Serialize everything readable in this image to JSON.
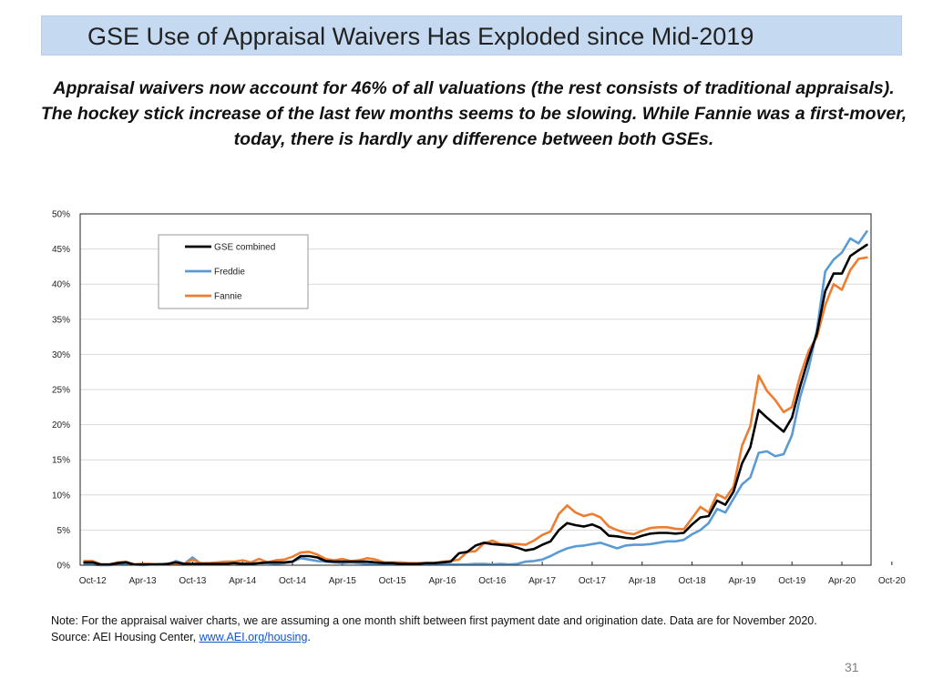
{
  "title": "GSE Use of Appraisal Waivers Has Exploded since Mid-2019",
  "subtitle": "Appraisal waivers now account for 46% of all valuations (the rest consists of traditional appraisals). The hockey stick increase of the last few months seems to be slowing. While Fannie was a first-mover, today, there is hardly any difference between both GSEs.",
  "note": {
    "line1": "Note: For the appraisal waiver charts, we are assuming a one month shift between first payment date and origination date. Data are for November 2020.",
    "source_prefix": "Source: AEI Housing Center, ",
    "source_link": "www.AEI.org/housing",
    "source_suffix": "."
  },
  "page_number": "31",
  "chart_data": {
    "type": "line",
    "x_start": "Sep-12",
    "x_end": "Nov-20",
    "x_ticks": [
      "Oct-12",
      "Apr-13",
      "Oct-13",
      "Apr-14",
      "Oct-14",
      "Apr-15",
      "Oct-15",
      "Apr-16",
      "Oct-16",
      "Apr-17",
      "Oct-17",
      "Apr-18",
      "Oct-18",
      "Apr-19",
      "Oct-19",
      "Apr-20",
      "Oct-20"
    ],
    "y_ticks": [
      "0%",
      "5%",
      "10%",
      "15%",
      "20%",
      "25%",
      "30%",
      "35%",
      "40%",
      "45%",
      "50%"
    ],
    "ylim": [
      0,
      50
    ],
    "grid": true,
    "legend_position": "top-left",
    "series": [
      {
        "name": "GSE combined",
        "color": "#000000",
        "values": [
          0.4,
          0.4,
          0.1,
          0.1,
          0.3,
          0.4,
          0.1,
          0.1,
          0.1,
          0.1,
          0.2,
          0.4,
          0.2,
          0.2,
          0.2,
          0.2,
          0.2,
          0.2,
          0.3,
          0.2,
          0.2,
          0.3,
          0.4,
          0.4,
          0.4,
          0.5,
          1.3,
          1.3,
          1.1,
          0.6,
          0.5,
          0.5,
          0.5,
          0.5,
          0.5,
          0.4,
          0.3,
          0.3,
          0.2,
          0.2,
          0.2,
          0.3,
          0.3,
          0.4,
          0.5,
          1.7,
          1.9,
          2.8,
          3.2,
          3.0,
          2.9,
          2.8,
          2.5,
          2.1,
          2.3,
          2.9,
          3.4,
          5.0,
          6.0,
          5.7,
          5.5,
          5.8,
          5.3,
          4.2,
          4.1,
          3.9,
          3.8,
          4.2,
          4.5,
          4.6,
          4.6,
          4.5,
          4.6,
          5.8,
          6.8,
          7.0,
          9.2,
          8.6,
          10.5,
          14.5,
          16.8,
          22.1,
          21.0,
          20.0,
          19.0,
          21.0,
          25.5,
          29.5,
          33.0,
          39.0,
          41.5,
          41.5,
          44.0,
          44.8,
          45.6
        ]
      },
      {
        "name": "Freddie",
        "color": "#5b9bd5",
        "values": [
          0.1,
          0.1,
          0.0,
          0.0,
          0.2,
          0.2,
          0.1,
          0.0,
          0.1,
          0.2,
          0.1,
          0.6,
          0.2,
          1.1,
          0.2,
          0.2,
          0.3,
          0.3,
          0.3,
          0.2,
          0.2,
          0.3,
          0.3,
          0.2,
          0.3,
          0.5,
          1.0,
          0.8,
          0.6,
          0.5,
          0.4,
          0.3,
          0.4,
          0.3,
          0.2,
          0.1,
          0.1,
          0.1,
          0.1,
          0.1,
          0.1,
          0.1,
          0.1,
          0.1,
          0.1,
          0.1,
          0.1,
          0.2,
          0.2,
          0.1,
          0.2,
          0.1,
          0.2,
          0.5,
          0.6,
          0.8,
          1.3,
          1.9,
          2.4,
          2.7,
          2.8,
          3.0,
          3.2,
          2.8,
          2.4,
          2.8,
          2.9,
          2.9,
          3.0,
          3.2,
          3.4,
          3.4,
          3.6,
          4.4,
          5.0,
          6.0,
          8.0,
          7.5,
          9.5,
          11.5,
          12.5,
          16.0,
          16.2,
          15.5,
          15.8,
          18.5,
          24.0,
          28.0,
          33.5,
          41.8,
          43.5,
          44.5,
          46.5,
          45.8,
          47.5
        ]
      },
      {
        "name": "Fannie",
        "color": "#ed7d31",
        "values": [
          0.6,
          0.6,
          0.1,
          0.1,
          0.4,
          0.5,
          0.1,
          0.2,
          0.2,
          0.1,
          0.2,
          0.2,
          0.2,
          0.8,
          0.3,
          0.3,
          0.4,
          0.5,
          0.5,
          0.7,
          0.4,
          0.9,
          0.4,
          0.7,
          0.8,
          1.2,
          1.8,
          1.9,
          1.5,
          0.9,
          0.7,
          0.9,
          0.6,
          0.7,
          1.0,
          0.8,
          0.4,
          0.4,
          0.4,
          0.3,
          0.3,
          0.3,
          0.3,
          0.5,
          0.6,
          0.8,
          1.9,
          2.0,
          3.1,
          3.5,
          3.0,
          3.0,
          3.0,
          2.9,
          3.5,
          4.3,
          4.8,
          7.3,
          8.5,
          7.5,
          7.0,
          7.3,
          6.8,
          5.5,
          5.0,
          4.6,
          4.4,
          4.9,
          5.3,
          5.4,
          5.4,
          5.2,
          5.1,
          6.7,
          8.3,
          7.5,
          10.1,
          9.5,
          11.2,
          17.0,
          19.8,
          27.0,
          24.8,
          23.5,
          21.8,
          22.5,
          27.0,
          30.5,
          32.5,
          37.0,
          40.0,
          39.2,
          42.0,
          43.6,
          43.8
        ]
      }
    ]
  }
}
